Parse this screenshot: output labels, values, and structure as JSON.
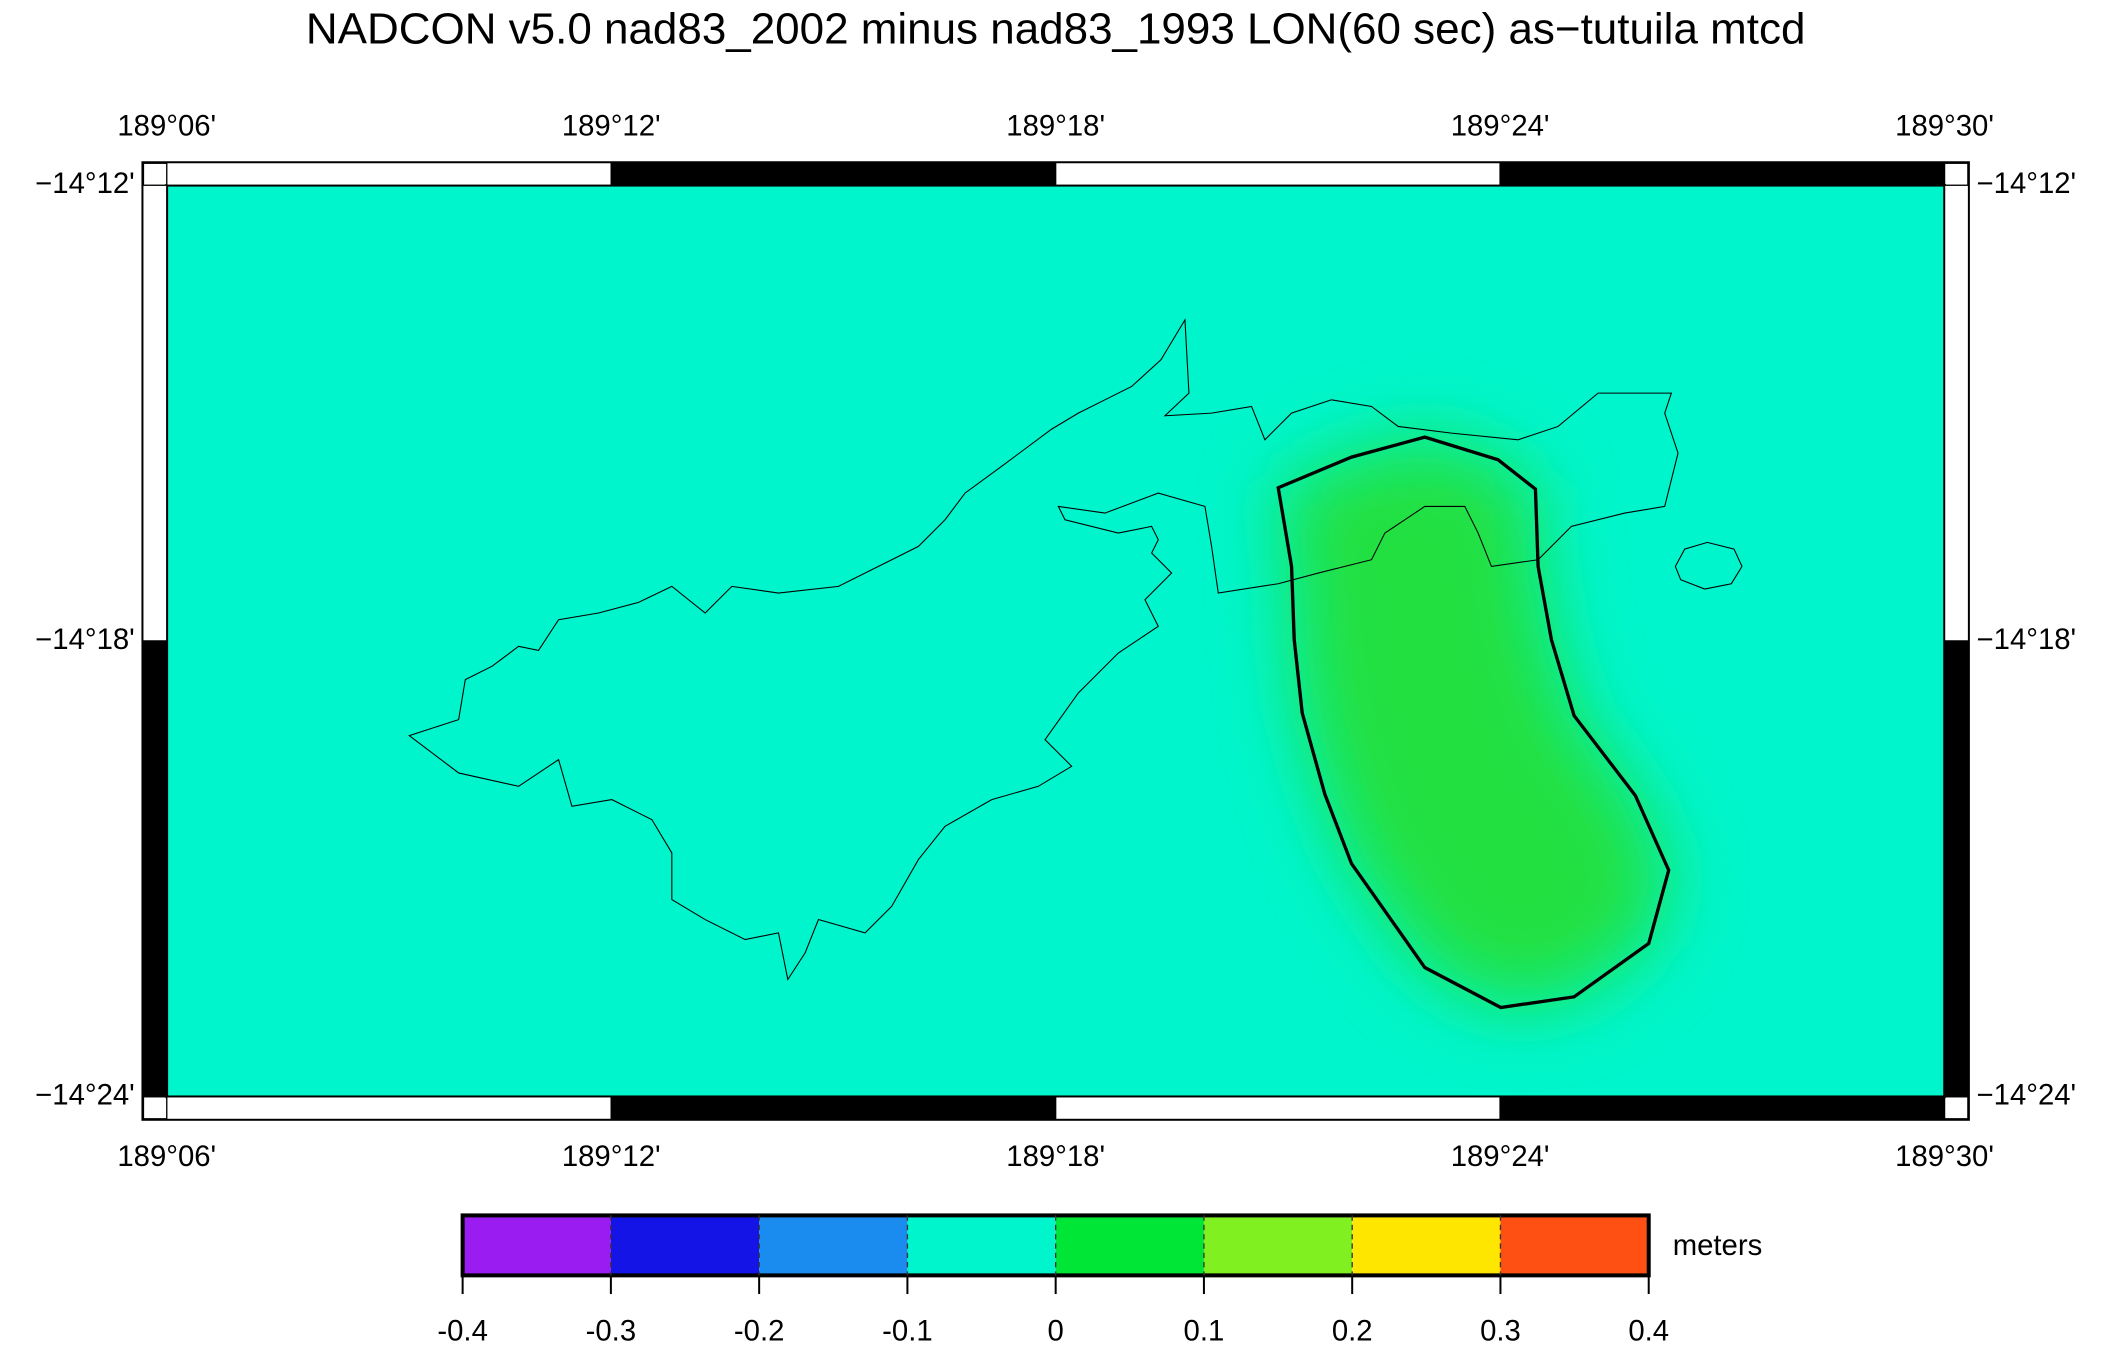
{
  "title": "NADCON v5.0 nad83_2002 minus nad83_1993 LON(60 sec) as−tutuila mtcd",
  "map": {
    "lon_ticks": [
      "189°06'",
      "189°12'",
      "189°18'",
      "189°24'",
      "189°30'"
    ],
    "lat_ticks": [
      "−14°12'",
      "−14°18'",
      "−14°24'"
    ]
  },
  "colorbar": {
    "ticks": [
      -0.4,
      -0.3,
      -0.2,
      -0.1,
      0,
      0.1,
      0.2,
      0.3,
      0.4
    ],
    "colors": [
      "#9a1cf0",
      "#1414e6",
      "#1a8cf0",
      "#00f5cc",
      "#00e636",
      "#80f020",
      "#ffe600",
      "#ff5014"
    ],
    "unit": "meters"
  }
}
